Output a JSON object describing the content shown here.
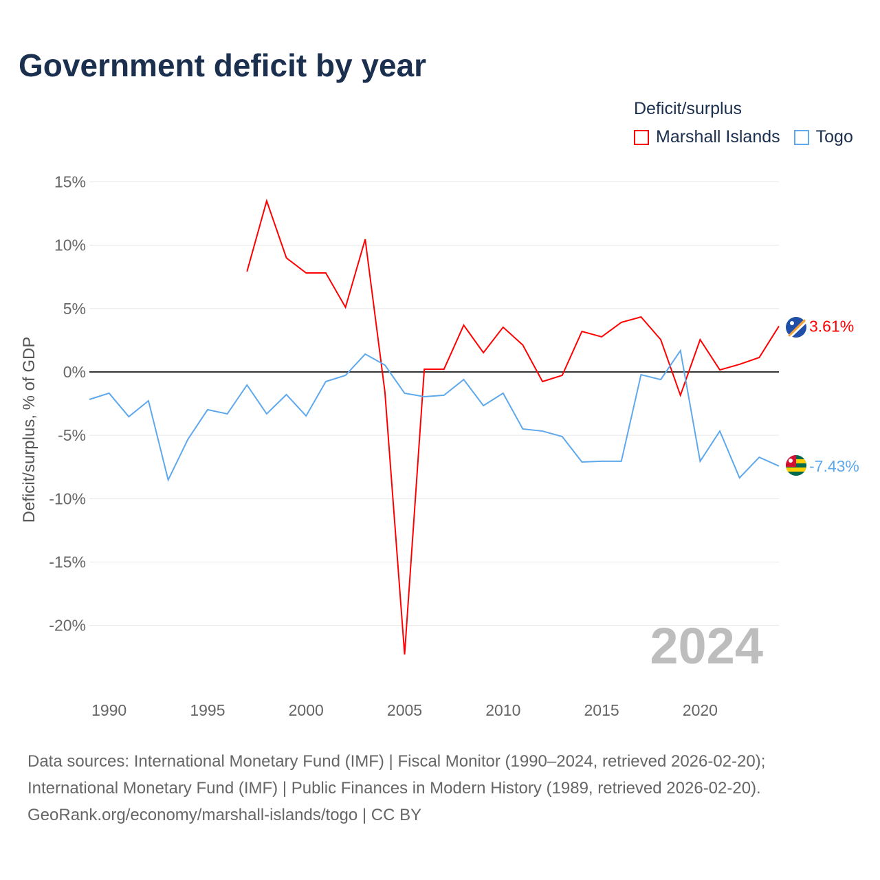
{
  "title": "Government deficit by year",
  "legend": {
    "title": "Deficit/surplus",
    "items": [
      "Marshall Islands",
      "Togo"
    ]
  },
  "year_watermark": "2024",
  "footer": [
    "Data sources: International Monetary Fund (IMF) | Fiscal Monitor (1990–2024, retrieved 2026-02-20);",
    "International Monetary Fund (IMF) | Public Finances in Modern History (1989, retrieved 2026-02-20).",
    "GeoRank.org/economy/marshall-islands/togo | CC BY"
  ],
  "chart_data": {
    "type": "line",
    "title": "Government deficit by year",
    "xlabel": "",
    "ylabel": "Deficit/surplus, % of GDP",
    "xlim": [
      1989,
      2024
    ],
    "ylim": [
      -24,
      15
    ],
    "x_ticks": [
      1990,
      1995,
      2000,
      2005,
      2010,
      2015,
      2020
    ],
    "y_ticks": [
      15,
      10,
      5,
      0,
      -5,
      -10,
      -15,
      -20
    ],
    "y_tick_labels": [
      "15%",
      "10%",
      "5%",
      "0%",
      "-5%",
      "-10%",
      "-15%",
      "-20%"
    ],
    "grid": true,
    "legend_placement": "top-right",
    "series": [
      {
        "name": "Marshall Islands",
        "color": "#ff0000",
        "end_label": "3.61%",
        "x": [
          1997,
          1998,
          1999,
          2000,
          2001,
          2002,
          2003,
          2004,
          2005,
          2006,
          2007,
          2008,
          2009,
          2010,
          2011,
          2012,
          2013,
          2014,
          2015,
          2016,
          2017,
          2018,
          2019,
          2020,
          2021,
          2022,
          2023,
          2024
        ],
        "values": [
          7.92,
          13.5,
          9.0,
          7.81,
          7.81,
          5.1,
          10.47,
          -1.57,
          -22.3,
          0.22,
          0.22,
          3.69,
          1.52,
          3.53,
          2.12,
          -0.76,
          -0.27,
          3.2,
          2.77,
          3.91,
          4.34,
          2.55,
          -1.84,
          2.55,
          0.16,
          0.6,
          1.14,
          3.61
        ]
      },
      {
        "name": "Togo",
        "color": "#5ea8ec",
        "end_label": "-7.43%",
        "x": [
          1989,
          1990,
          1991,
          1992,
          1993,
          1994,
          1995,
          1996,
          1997,
          1998,
          1999,
          2000,
          2001,
          2002,
          2003,
          2004,
          2005,
          2006,
          2007,
          2008,
          2009,
          2010,
          2011,
          2012,
          2013,
          2014,
          2015,
          2016,
          2017,
          2018,
          2019,
          2020,
          2021,
          2022,
          2023,
          2024
        ],
        "values": [
          -2.17,
          -1.68,
          -3.53,
          -2.28,
          -8.52,
          -5.32,
          -2.98,
          -3.31,
          -1.03,
          -3.31,
          -1.79,
          -3.47,
          -0.76,
          -0.27,
          1.41,
          0.54,
          -1.68,
          -1.95,
          -1.84,
          -0.6,
          -2.66,
          -1.68,
          -4.5,
          -4.67,
          -5.1,
          -7.11,
          -7.05,
          -7.05,
          -0.22,
          -0.6,
          1.68,
          -7.05,
          -4.67,
          -8.36,
          -6.73,
          -7.43
        ]
      }
    ]
  }
}
